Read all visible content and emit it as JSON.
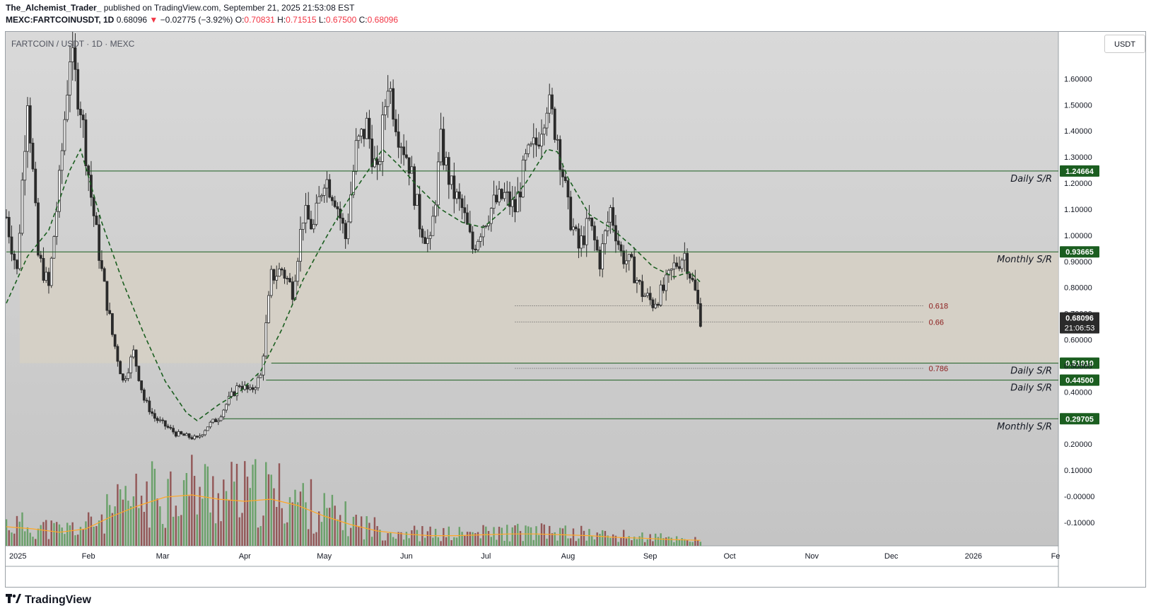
{
  "header": {
    "author": "The_Alchemist_Trader_",
    "published": "published on TradingView.com, September 21, 2025 21:53:08 EST",
    "symbol": "MEXC:FARTCOINUSDT, 1D",
    "price": "0.68096",
    "arrow": "▼",
    "change": "−0.02775 (−3.92%)",
    "o_label": "O:",
    "o_value": "0.70831",
    "h_label": "H:",
    "h_value": "0.71515",
    "l_label": "L:",
    "l_value": "0.67500",
    "c_label": "C:",
    "c_value": "0.68096"
  },
  "chart_label": "FARTCOIN / USDT · 1D · MEXC",
  "unit": "USDT",
  "logo_text": "TradingView",
  "colors": {
    "up": "#2b2b2b",
    "down": "#2b2b2b",
    "grid": "#c5c5c5",
    "level": "#1b5e20",
    "ma": "#1b5e20",
    "vol_up": "#5f9c5f",
    "vol_down": "#8c4a4a",
    "vol_ma": "#ffa726",
    "zone": "#d6d0c4",
    "fib": "#8b1a1a"
  },
  "chart_data": {
    "type": "candlestick",
    "ylim": [
      -0.19,
      1.78
    ],
    "y_ticks": [
      "1.60000",
      "1.50000",
      "1.40000",
      "1.30000",
      "1.20000",
      "1.10000",
      "1.00000",
      "0.90000",
      "0.80000",
      "0.70000",
      "0.60000",
      "0.50000",
      "0.40000",
      "0.20000",
      "0.10000",
      "-0.00000",
      "-0.10000"
    ],
    "y_tick_values": [
      1.6,
      1.5,
      1.4,
      1.3,
      1.2,
      1.1,
      1.0,
      0.9,
      0.8,
      0.7,
      0.6,
      0.5,
      0.4,
      0.2,
      0.1,
      0.0,
      -0.1
    ],
    "x_ticks": [
      "2025",
      "Feb",
      "Mar",
      "Apr",
      "May",
      "Jun",
      "Jul",
      "Aug",
      "Sep",
      "Oct",
      "Nov",
      "Dec",
      "2026",
      "Fe"
    ],
    "x_tick_days": [
      0,
      31,
      59,
      90,
      120,
      151,
      181,
      212,
      243,
      273,
      304,
      334,
      365,
      396
    ],
    "levels": [
      {
        "value": 1.24664,
        "label": "1.24664",
        "name": "Daily S/R",
        "start_day": 30
      },
      {
        "value": 0.93665,
        "label": "0.93665",
        "name": "Monthly S/R",
        "start_day": 0
      },
      {
        "value": 0.5101,
        "label": "0.51010",
        "name": "Daily S/R",
        "start_day": 100
      },
      {
        "value": 0.445,
        "label": "0.44500",
        "name": "Daily S/R",
        "start_day": 98
      },
      {
        "value": 0.29705,
        "label": "0.29705",
        "name": "Monthly S/R",
        "start_day": 82
      }
    ],
    "fib_levels": [
      {
        "value": 0.73,
        "label": "0.618"
      },
      {
        "value": 0.668,
        "label": "0.66"
      },
      {
        "value": 0.49,
        "label": "0.786"
      }
    ],
    "zone": {
      "top": 0.93665,
      "bottom": 0.5101
    },
    "current": {
      "value": 0.68096,
      "label": "0.68096",
      "countdown": "21:06:53"
    },
    "price_path": [
      [
        0,
        1.07
      ],
      [
        4,
        0.86
      ],
      [
        8,
        1.55
      ],
      [
        12,
        0.92
      ],
      [
        16,
        0.8
      ],
      [
        20,
        1.2
      ],
      [
        24,
        1.7
      ],
      [
        28,
        1.5
      ],
      [
        32,
        1.15
      ],
      [
        36,
        0.86
      ],
      [
        40,
        0.62
      ],
      [
        44,
        0.44
      ],
      [
        48,
        0.55
      ],
      [
        52,
        0.37
      ],
      [
        56,
        0.3
      ],
      [
        60,
        0.27
      ],
      [
        64,
        0.24
      ],
      [
        68,
        0.23
      ],
      [
        72,
        0.22
      ],
      [
        76,
        0.27
      ],
      [
        80,
        0.3
      ],
      [
        84,
        0.37
      ],
      [
        88,
        0.43
      ],
      [
        92,
        0.4
      ],
      [
        96,
        0.46
      ],
      [
        100,
        0.84
      ],
      [
        104,
        0.87
      ],
      [
        108,
        0.79
      ],
      [
        112,
        1.08
      ],
      [
        116,
        1.03
      ],
      [
        120,
        1.23
      ],
      [
        124,
        1.15
      ],
      [
        128,
        0.99
      ],
      [
        132,
        1.33
      ],
      [
        136,
        1.42
      ],
      [
        140,
        1.22
      ],
      [
        144,
        1.6
      ],
      [
        148,
        1.4
      ],
      [
        152,
        1.28
      ],
      [
        156,
        1.05
      ],
      [
        160,
        0.96
      ],
      [
        164,
        1.35
      ],
      [
        168,
        1.18
      ],
      [
        172,
        1.1
      ],
      [
        176,
        0.95
      ],
      [
        180,
        1.05
      ],
      [
        184,
        1.12
      ],
      [
        188,
        1.15
      ],
      [
        192,
        1.1
      ],
      [
        196,
        1.28
      ],
      [
        200,
        1.35
      ],
      [
        204,
        1.52
      ],
      [
        208,
        1.38
      ],
      [
        212,
        1.1
      ],
      [
        216,
        0.95
      ],
      [
        220,
        1.05
      ],
      [
        224,
        0.9
      ],
      [
        228,
        1.1
      ],
      [
        232,
        0.93
      ],
      [
        236,
        0.88
      ],
      [
        240,
        0.78
      ],
      [
        244,
        0.74
      ],
      [
        248,
        0.79
      ],
      [
        252,
        0.88
      ],
      [
        256,
        0.93
      ],
      [
        260,
        0.78
      ],
      [
        262,
        0.68
      ]
    ],
    "ma_path": [
      [
        0,
        0.74
      ],
      [
        8,
        0.92
      ],
      [
        16,
        1.02
      ],
      [
        24,
        1.25
      ],
      [
        28,
        1.33
      ],
      [
        36,
        1.05
      ],
      [
        44,
        0.82
      ],
      [
        52,
        0.62
      ],
      [
        60,
        0.44
      ],
      [
        68,
        0.32
      ],
      [
        72,
        0.29
      ],
      [
        80,
        0.35
      ],
      [
        88,
        0.4
      ],
      [
        96,
        0.48
      ],
      [
        104,
        0.64
      ],
      [
        112,
        0.83
      ],
      [
        120,
        0.98
      ],
      [
        128,
        1.12
      ],
      [
        136,
        1.24
      ],
      [
        142,
        1.33
      ],
      [
        148,
        1.27
      ],
      [
        156,
        1.18
      ],
      [
        164,
        1.1
      ],
      [
        172,
        1.05
      ],
      [
        180,
        1.03
      ],
      [
        188,
        1.1
      ],
      [
        196,
        1.2
      ],
      [
        204,
        1.33
      ],
      [
        208,
        1.32
      ],
      [
        212,
        1.22
      ],
      [
        220,
        1.08
      ],
      [
        228,
        1.03
      ],
      [
        236,
        0.96
      ],
      [
        244,
        0.88
      ],
      [
        252,
        0.84
      ],
      [
        258,
        0.86
      ],
      [
        262,
        0.82
      ]
    ],
    "volume_ylim": [
      0,
      0.32
    ],
    "volume_ma_path": [
      [
        0,
        0.045
      ],
      [
        10,
        0.04
      ],
      [
        20,
        0.032
      ],
      [
        30,
        0.04
      ],
      [
        40,
        0.07
      ],
      [
        50,
        0.095
      ],
      [
        60,
        0.115
      ],
      [
        70,
        0.12
      ],
      [
        80,
        0.11
      ],
      [
        90,
        0.105
      ],
      [
        100,
        0.11
      ],
      [
        110,
        0.095
      ],
      [
        120,
        0.07
      ],
      [
        130,
        0.05
      ],
      [
        140,
        0.035
      ],
      [
        150,
        0.028
      ],
      [
        160,
        0.024
      ],
      [
        170,
        0.024
      ],
      [
        180,
        0.026
      ],
      [
        190,
        0.028
      ],
      [
        200,
        0.028
      ],
      [
        210,
        0.026
      ],
      [
        220,
        0.024
      ],
      [
        230,
        0.02
      ],
      [
        240,
        0.018
      ],
      [
        250,
        0.015
      ],
      [
        262,
        0.013
      ]
    ]
  }
}
